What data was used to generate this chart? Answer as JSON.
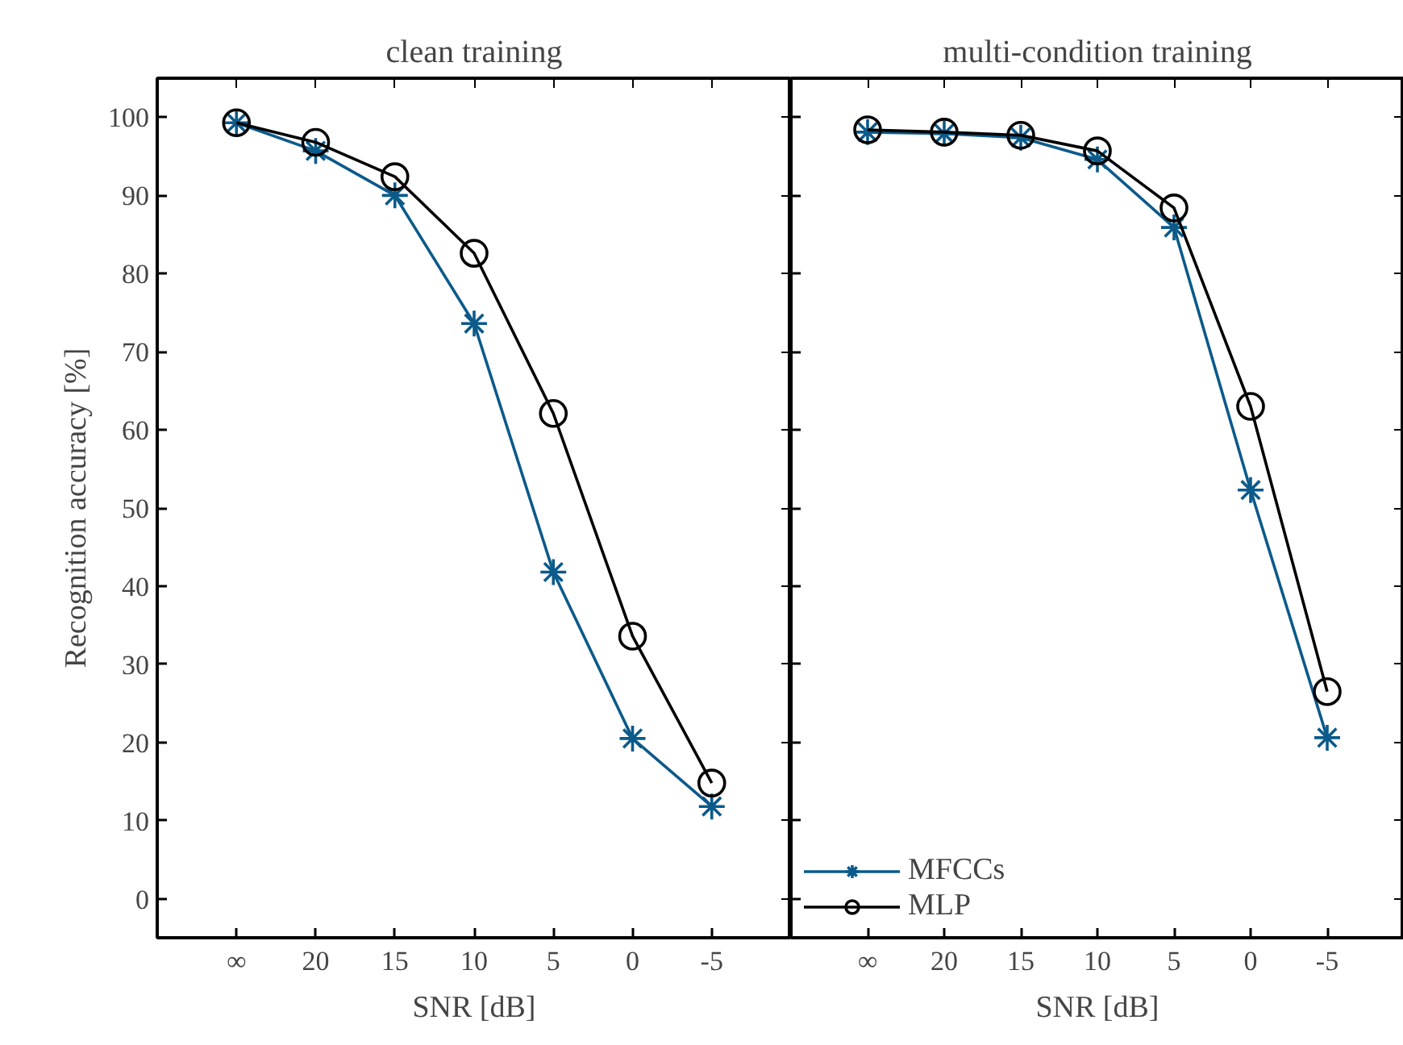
{
  "chart_data": [
    {
      "type": "line",
      "title": "clean training",
      "xlabel": "SNR [dB]",
      "ylabel": "Recognition accuracy [%]",
      "categories": [
        "∞",
        "20",
        "15",
        "10",
        "5",
        "0",
        "-5"
      ],
      "ylim": [
        -5,
        105
      ],
      "yticks": [
        0,
        10,
        20,
        30,
        40,
        50,
        60,
        70,
        80,
        90,
        100
      ],
      "grid": false,
      "legend": false,
      "line_style": "solid",
      "series": [
        {
          "color": "#0b5a8a",
          "marker": "cross",
          "values": [
            99.3,
            95.7,
            90.0,
            73.6,
            41.8,
            20.5,
            11.8
          ]
        },
        {
          "color": "#000000",
          "marker": "circle",
          "values": [
            99.3,
            96.8,
            92.4,
            82.6,
            62.1,
            33.6,
            14.8
          ]
        }
      ]
    },
    {
      "type": "line",
      "title": "multi-condition training",
      "xlabel": "SNR [dB]",
      "categories": [
        "∞",
        "20",
        "15",
        "10",
        "5",
        "0",
        "-5"
      ],
      "ylim": [
        -5,
        105
      ],
      "yticks": [
        0,
        10,
        20,
        30,
        40,
        50,
        60,
        70,
        80,
        90,
        100
      ],
      "tick_labels": "x",
      "grid": false,
      "legend": "bottom left",
      "line_style": "solid",
      "series": [
        {
          "name": "MFCCs",
          "color": "#0b5a8a",
          "marker": "cross",
          "values": [
            98.1,
            97.9,
            97.4,
            94.6,
            85.9,
            52.3,
            20.6
          ]
        },
        {
          "name": "MLP",
          "color": "#000000",
          "marker": "circle",
          "values": [
            98.4,
            98.1,
            97.7,
            95.7,
            88.4,
            63.0,
            26.5
          ]
        }
      ]
    }
  ]
}
